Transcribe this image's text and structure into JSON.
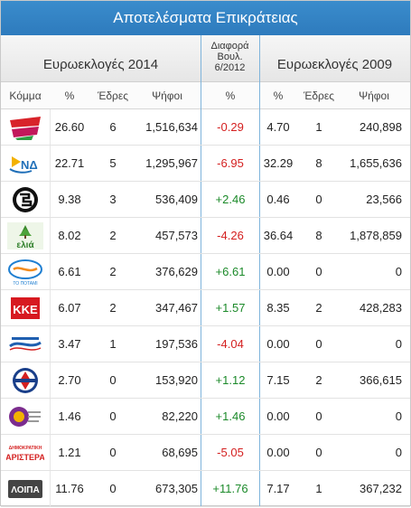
{
  "title": "Αποτελέσματα Επικράτειας",
  "group_2014": "Ευρωεκλογές 2014",
  "diff_header": [
    "Διαφορά",
    "Βουλ.",
    "6/2012"
  ],
  "group_2009": "Ευρωεκλογές 2009",
  "columns": {
    "party": "Κόμμα",
    "pct": "%",
    "seats": "Έδρες",
    "votes": "Ψήφοι",
    "diff_pct": "%",
    "pct09": "%",
    "seats09": "Έδρες",
    "votes09": "Ψήφοι"
  },
  "rows": [
    {
      "logo": "syriza-logo",
      "pct": "26.60",
      "seats": "6",
      "votes": "1,516,634",
      "diff": "-0.29",
      "sign": "neg",
      "pct09": "4.70",
      "seats09": "1",
      "votes09": "240,898"
    },
    {
      "logo": "nd-logo",
      "logo_text": "ΝΔ",
      "pct": "22.71",
      "seats": "5",
      "votes": "1,295,967",
      "diff": "-6.95",
      "sign": "neg",
      "pct09": "32.29",
      "seats09": "8",
      "votes09": "1,655,636"
    },
    {
      "logo": "golden-dawn-logo",
      "pct": "9.38",
      "seats": "3",
      "votes": "536,409",
      "diff": "+2.46",
      "sign": "pos",
      "pct09": "0.46",
      "seats09": "0",
      "votes09": "23,566"
    },
    {
      "logo": "elia-logo",
      "logo_text": "ελιά",
      "pct": "8.02",
      "seats": "2",
      "votes": "457,573",
      "diff": "-4.26",
      "sign": "neg",
      "pct09": "36.64",
      "seats09": "8",
      "votes09": "1,878,859"
    },
    {
      "logo": "to-potami-logo",
      "logo_text": "ΤΟ ΠΟΤΑΜΙ",
      "pct": "6.61",
      "seats": "2",
      "votes": "376,629",
      "diff": "+6.61",
      "sign": "pos",
      "pct09": "0.00",
      "seats09": "0",
      "votes09": "0"
    },
    {
      "logo": "kke-logo",
      "logo_text": "ΚΚΕ",
      "pct": "6.07",
      "seats": "2",
      "votes": "347,467",
      "diff": "+1.57",
      "sign": "pos",
      "pct09": "8.35",
      "seats09": "2",
      "votes09": "428,283"
    },
    {
      "logo": "anel-logo",
      "pct": "3.47",
      "seats": "1",
      "votes": "197,536",
      "diff": "-4.04",
      "sign": "neg",
      "pct09": "0.00",
      "seats09": "0",
      "votes09": "0"
    },
    {
      "logo": "laos-logo",
      "pct": "2.70",
      "seats": "0",
      "votes": "153,920",
      "diff": "+1.12",
      "sign": "pos",
      "pct09": "7.15",
      "seats09": "2",
      "votes09": "366,615"
    },
    {
      "logo": "enosi-kentroon-logo",
      "pct": "1.46",
      "seats": "0",
      "votes": "82,220",
      "diff": "+1.46",
      "sign": "pos",
      "pct09": "0.00",
      "seats09": "0",
      "votes09": "0"
    },
    {
      "logo": "dimar-logo",
      "logo_text": [
        "ΔΗΜΟΚΡΑΤΙΚΗ",
        "ΑΡΙΣΤΕΡΑ"
      ],
      "pct": "1.21",
      "seats": "0",
      "votes": "68,695",
      "diff": "-5.05",
      "sign": "neg",
      "pct09": "0.00",
      "seats09": "0",
      "votes09": "0"
    },
    {
      "logo": "loipa-logo",
      "logo_text": "ΛΟΙΠΑ",
      "pct": "11.76",
      "seats": "0",
      "votes": "673,305",
      "diff": "+11.76",
      "sign": "pos",
      "pct09": "7.17",
      "seats09": "1",
      "votes09": "367,232"
    }
  ],
  "colors": {
    "title_bar": "#2e7bbd",
    "negative": "#d42020",
    "positive": "#1c8a2a",
    "divider": "#7fb4db"
  }
}
